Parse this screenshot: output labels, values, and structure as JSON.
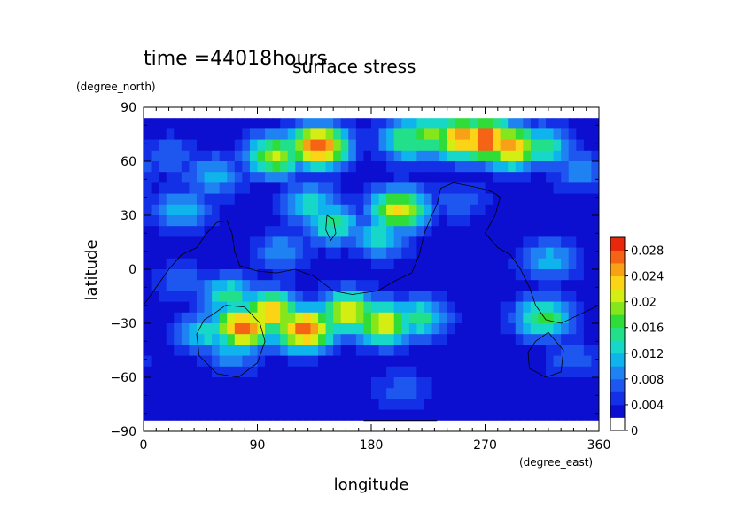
{
  "chart_data": {
    "type": "heatmap",
    "time_label": "time =44018hours",
    "title": "surface stress",
    "xlabel": "longitude",
    "ylabel": "latitude",
    "x_units": "(degree_east)",
    "y_units": "(degree_north)",
    "xlim": [
      0,
      360
    ],
    "ylim": [
      -90,
      90
    ],
    "x_ticks": [
      0,
      90,
      180,
      270,
      360
    ],
    "y_ticks": [
      90,
      60,
      30,
      0,
      -30,
      -60,
      -90
    ],
    "x_tick_labels": [
      "0",
      "90",
      "180",
      "270",
      "360"
    ],
    "y_tick_labels": [
      "90",
      "60",
      "30",
      "0",
      "−30",
      "−60",
      "−90"
    ],
    "colorbar": {
      "min": 0,
      "max": 0.03,
      "tick_values": [
        0,
        0.004,
        0.008,
        0.012,
        0.016,
        0.02,
        0.024,
        0.028
      ],
      "tick_labels": [
        "0",
        "0.004",
        "0.008",
        "0.012",
        "0.016",
        "0.02",
        "0.024",
        "0.028"
      ],
      "colors": [
        "#ffffff",
        "#0c0fd0",
        "#1430e6",
        "#1e56f0",
        "#1f82f2",
        "#10b4ec",
        "#17d7c8",
        "#22e08a",
        "#30dc38",
        "#86e61c",
        "#d4ee14",
        "#fcd416",
        "#f8a016",
        "#f46414",
        "#e8280c"
      ]
    },
    "hotspots": [
      {
        "lon": 138,
        "lat": 68,
        "value": 0.028
      },
      {
        "lon": 270,
        "lat": 72,
        "value": 0.028
      },
      {
        "lon": 252,
        "lat": 73,
        "value": 0.026
      },
      {
        "lon": 290,
        "lat": 68,
        "value": 0.025
      },
      {
        "lon": 104,
        "lat": 63,
        "value": 0.02
      },
      {
        "lon": 210,
        "lat": 72,
        "value": 0.016
      },
      {
        "lon": 228,
        "lat": 74,
        "value": 0.018
      },
      {
        "lon": 315,
        "lat": 68,
        "value": 0.014
      },
      {
        "lon": 79,
        "lat": -32,
        "value": 0.028
      },
      {
        "lon": 127,
        "lat": -33,
        "value": 0.028
      },
      {
        "lon": 100,
        "lat": -24,
        "value": 0.024
      },
      {
        "lon": 162,
        "lat": -24,
        "value": 0.022
      },
      {
        "lon": 190,
        "lat": -30,
        "value": 0.022
      },
      {
        "lon": 218,
        "lat": -27,
        "value": 0.014
      },
      {
        "lon": 68,
        "lat": -15,
        "value": 0.014
      },
      {
        "lon": 202,
        "lat": 33,
        "value": 0.022
      },
      {
        "lon": 188,
        "lat": 18,
        "value": 0.012
      },
      {
        "lon": 150,
        "lat": 25,
        "value": 0.014
      },
      {
        "lon": 133,
        "lat": 36,
        "value": 0.012
      },
      {
        "lon": 316,
        "lat": -27,
        "value": 0.016
      },
      {
        "lon": 70,
        "lat": -45,
        "value": 0.01
      },
      {
        "lon": 50,
        "lat": -35,
        "value": 0.012
      },
      {
        "lon": 22,
        "lat": 63,
        "value": 0.006
      },
      {
        "lon": 55,
        "lat": 52,
        "value": 0.01
      },
      {
        "lon": 30,
        "lat": 33,
        "value": 0.01
      },
      {
        "lon": 345,
        "lat": 55,
        "value": 0.008
      },
      {
        "lon": 320,
        "lat": 5,
        "value": 0.01
      },
      {
        "lon": 205,
        "lat": -68,
        "value": 0.006
      },
      {
        "lon": 110,
        "lat": 10,
        "value": 0.008
      },
      {
        "lon": 250,
        "lat": 38,
        "value": 0.006
      },
      {
        "lon": 340,
        "lat": -50,
        "value": 0.006
      },
      {
        "lon": 30,
        "lat": -8,
        "value": 0.006
      }
    ],
    "grid": false,
    "legend": "right colorbar"
  }
}
